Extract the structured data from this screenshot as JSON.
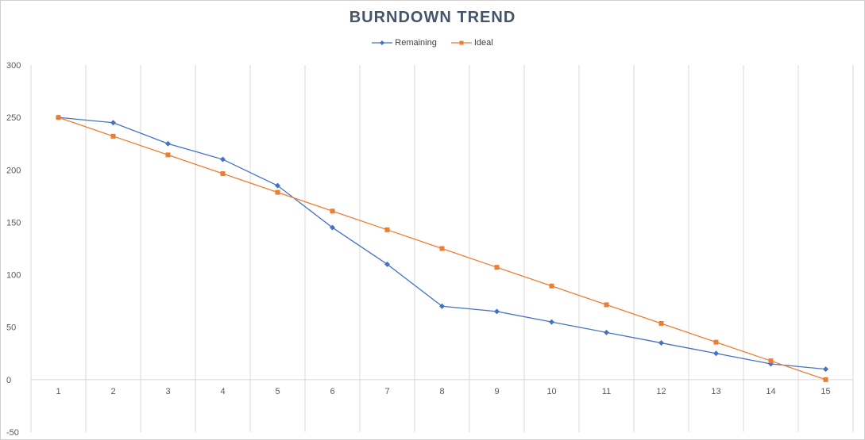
{
  "chart_data": {
    "type": "line",
    "title": "BURNDOWN TREND",
    "categories": [
      "1",
      "2",
      "3",
      "4",
      "5",
      "6",
      "7",
      "8",
      "9",
      "10",
      "11",
      "12",
      "13",
      "14",
      "15"
    ],
    "series": [
      {
        "name": "Remaining",
        "color": "#4472c4",
        "marker": "diamond",
        "values": [
          250,
          245,
          225,
          210,
          185,
          145,
          110,
          70,
          65,
          55,
          45,
          35,
          25,
          15,
          10
        ]
      },
      {
        "name": "Ideal",
        "color": "#ed7d31",
        "marker": "square",
        "values": [
          250,
          232.1,
          214.3,
          196.4,
          178.6,
          160.7,
          142.9,
          125,
          107.1,
          89.3,
          71.4,
          53.6,
          35.7,
          17.9,
          0
        ]
      }
    ],
    "ylim": [
      -50,
      300
    ],
    "yticks": [
      300,
      250,
      200,
      150,
      100,
      50,
      0,
      -50
    ],
    "grid": "vertical",
    "legend_position": "top"
  }
}
